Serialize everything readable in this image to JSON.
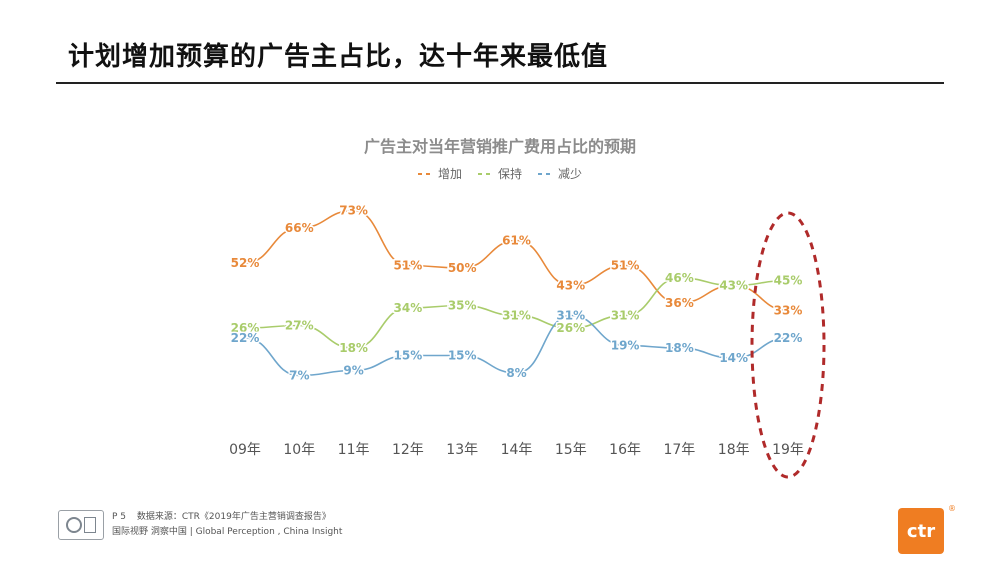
{
  "slide": {
    "title": "计划增加预算的广告主占比，达十年来最低值"
  },
  "chart_data": {
    "type": "line",
    "title": "广告主对当年营销推广费用占比的预期",
    "categories": [
      "09年",
      "10年",
      "11年",
      "12年",
      "13年",
      "14年",
      "15年",
      "16年",
      "17年",
      "18年",
      "19年"
    ],
    "series": [
      {
        "name": "增加",
        "color": "#e8893a",
        "values": [
          52,
          66,
          73,
          51,
          50,
          61,
          43,
          51,
          36,
          43,
          33
        ]
      },
      {
        "name": "保持",
        "color": "#a9cc6b",
        "values": [
          26,
          27,
          18,
          34,
          35,
          31,
          26,
          31,
          46,
          43,
          45
        ]
      },
      {
        "name": "减少",
        "color": "#6fa6cc",
        "values": [
          22,
          7,
          9,
          15,
          15,
          8,
          31,
          19,
          18,
          14,
          22
        ]
      }
    ],
    "value_suffix": "%",
    "legend_position": "top",
    "grid": false,
    "highlight": "19年"
  },
  "footer": {
    "page": "P 5",
    "source": "数据来源：CTR《2019年广告主营销调查报告》",
    "slogan": "国际视野  洞察中国 | Global Perception , China Insight"
  },
  "brand": {
    "logo_text": "ctr",
    "reg_mark": "®"
  }
}
